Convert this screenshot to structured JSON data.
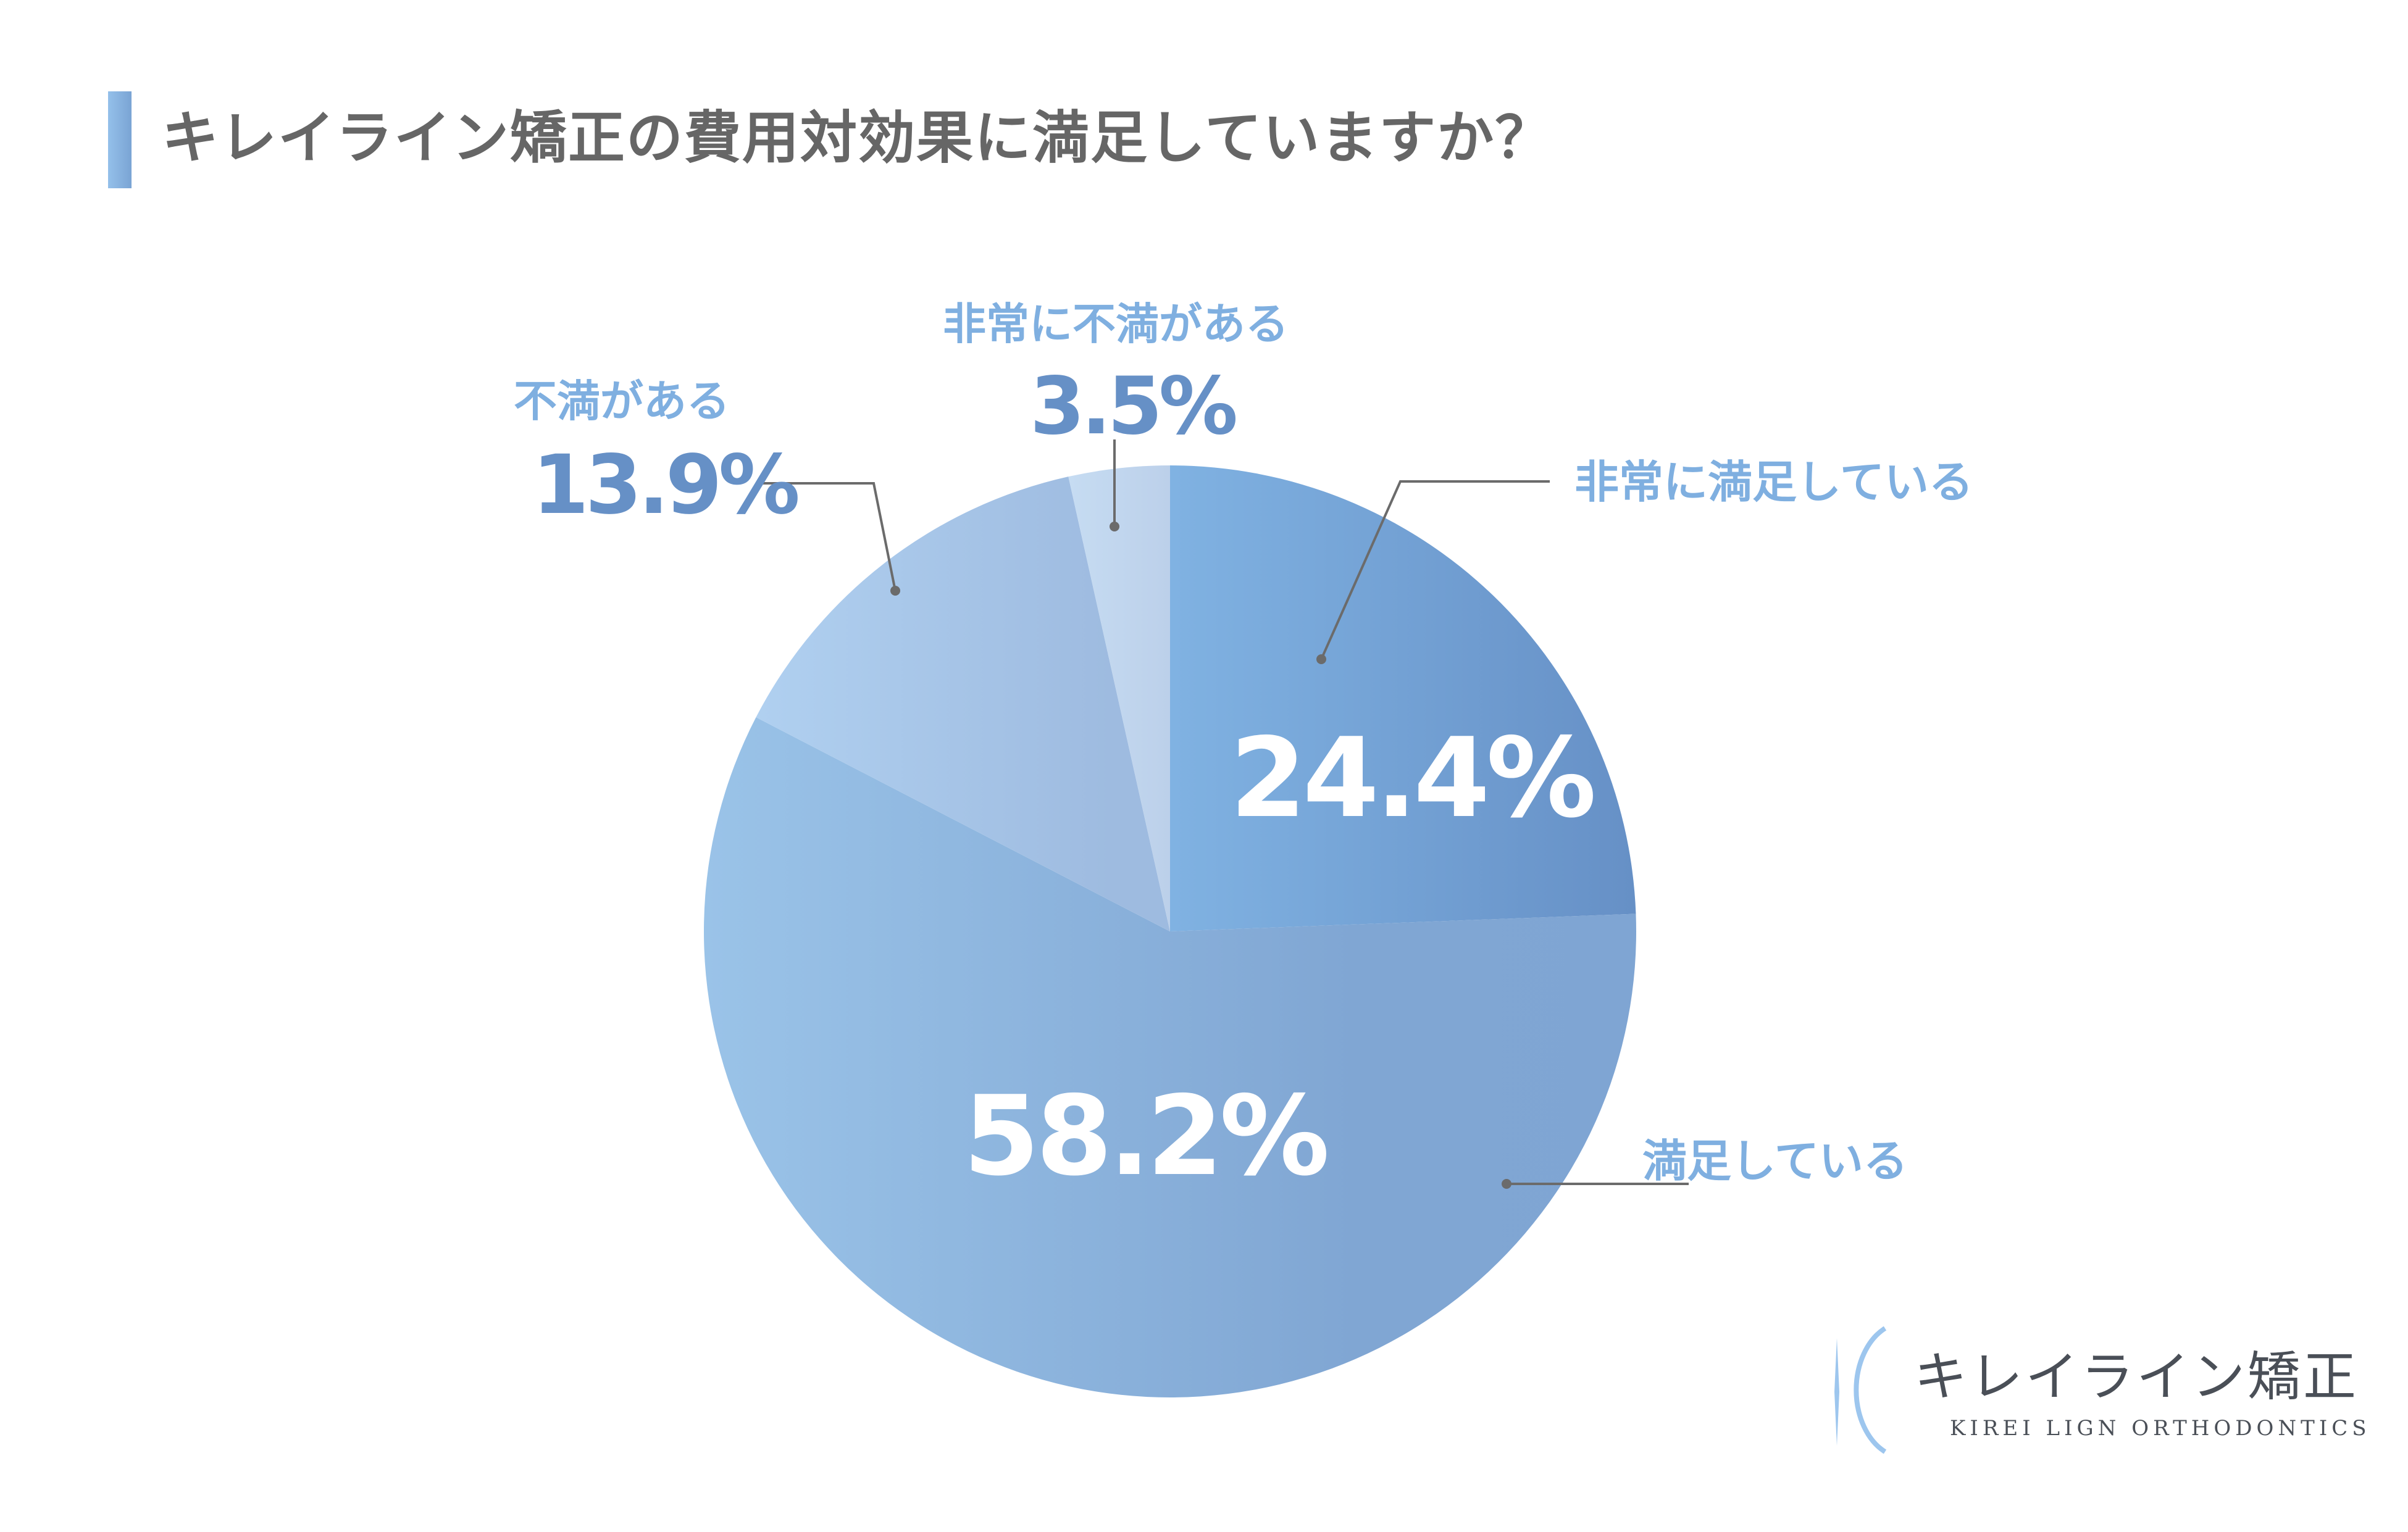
{
  "header": {
    "title": "キレイライン矯正の費用対効果に満足していますか？",
    "accent_bar_color": "#7FAFE0"
  },
  "chart": {
    "slices": [
      {
        "label": "非常に満足している",
        "value_text": "24.4%"
      },
      {
        "label": "満足している",
        "value_text": "58.2%"
      },
      {
        "label": "不満がある",
        "value_text": "13.9%"
      },
      {
        "label": "非常に不満がある",
        "value_text": "3.5%"
      }
    ]
  },
  "logo": {
    "name": "キレイライン矯正",
    "subtitle": "KIREI LIGN ORTHODONTICS"
  },
  "chart_data": {
    "type": "pie",
    "title": "キレイライン矯正の費用対効果に満足していますか？",
    "categories": [
      "非常に満足している",
      "満足している",
      "不満がある",
      "非常に不満がある"
    ],
    "values": [
      24.4,
      58.2,
      13.9,
      3.5
    ],
    "unit": "%",
    "start_angle": "12 o'clock",
    "direction": "clockwise",
    "colors": [
      [
        "#80B2E2",
        "#6690C6"
      ],
      [
        "#9AC3E8",
        "#7FA5D3"
      ],
      [
        "#B0D0F0",
        "#9EBBE0"
      ],
      [
        "#C6DCF2",
        "#BCD0EA"
      ]
    ],
    "label_colors": {
      "category": "#7FAFE0",
      "outer_value": "#6690C6",
      "inner_value": "#FFFFFF"
    },
    "legend": "none (callout labels with leader lines)"
  }
}
